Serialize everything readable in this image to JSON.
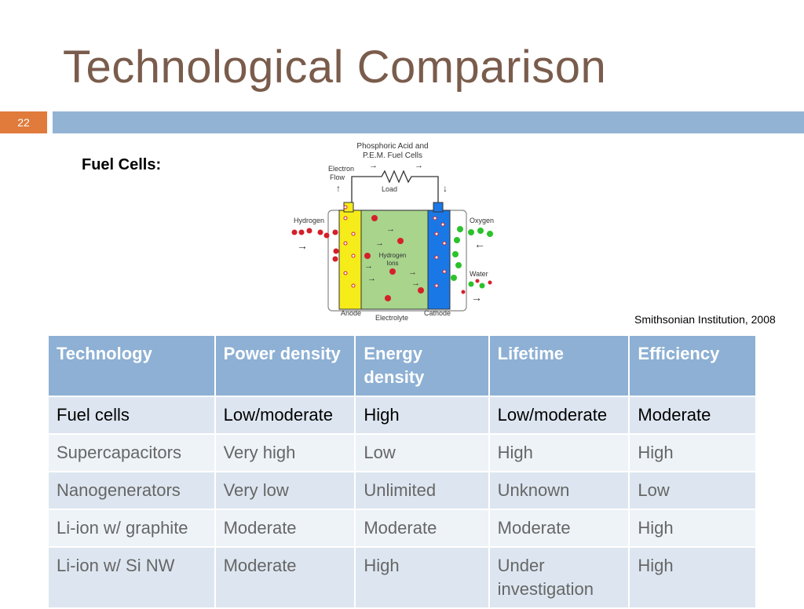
{
  "slide": {
    "title": "Technological Comparison",
    "number": "22",
    "subheading": "Fuel Cells:",
    "credit": "Smithsonian Institution, 2008"
  },
  "diagram": {
    "title_line1": "Phosphoric Acid and",
    "title_line2": "P.E.M. Fuel Cells",
    "electron_flow_1": "Electron",
    "electron_flow_2": "Flow",
    "load": "Load",
    "hydrogen": "Hydrogen",
    "oxygen": "Oxygen",
    "hydrogen_ions_1": "Hydrogen",
    "hydrogen_ions_2": "Ions",
    "water": "Water",
    "anode": "Anode",
    "electrolyte": "Electrolyte",
    "cathode": "Cathode",
    "colors": {
      "anode": "#f5ec1a",
      "electrolyte": "#a8d48c",
      "cathode": "#1a78e6",
      "hydrogen_dot": "#d4202a",
      "oxygen_dot": "#2bc22b"
    }
  },
  "table": {
    "headers": [
      "Technology",
      "Power density",
      "Energy density",
      "Lifetime",
      "Efficiency"
    ],
    "rows": [
      [
        "Fuel cells",
        "Low/moderate",
        "High",
        "Low/moderate",
        "Moderate"
      ],
      [
        "Supercapacitors",
        "Very high",
        "Low",
        "High",
        "High"
      ],
      [
        "Nanogenerators",
        "Very low",
        "Unlimited",
        "Unknown",
        "Low"
      ],
      [
        "Li-ion w/ graphite",
        "Moderate",
        "Moderate",
        "Moderate",
        "High"
      ],
      [
        "Li-ion w/ Si NW",
        "Moderate",
        "High",
        "Under investigation",
        "High"
      ]
    ]
  }
}
